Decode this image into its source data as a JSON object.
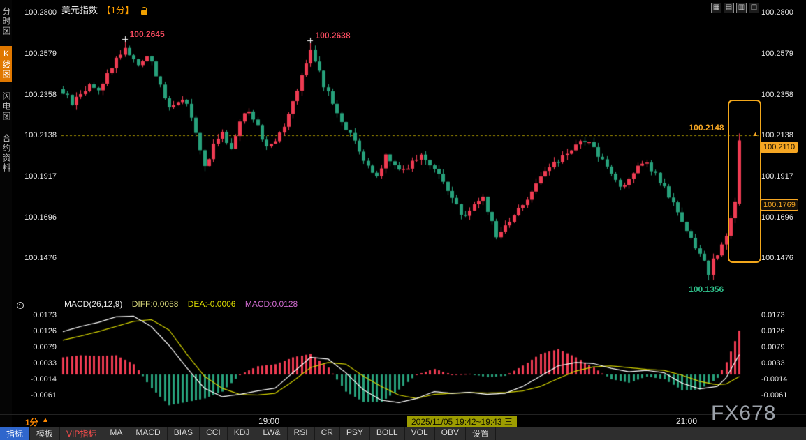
{
  "header": {
    "title": "美元指数",
    "interval_tag": "【1分】"
  },
  "icons": {
    "up_arrow": "▲",
    "window_icons": [
      {
        "name": "layout-grid-icon",
        "glyph": "▦"
      },
      {
        "name": "layout-rows-icon",
        "glyph": "▤"
      },
      {
        "name": "layout-columns-icon",
        "glyph": "▥"
      },
      {
        "name": "layout-split-icon",
        "glyph": "◫"
      }
    ]
  },
  "sidebar": {
    "items": [
      {
        "label": "分时图",
        "active": false
      },
      {
        "label": "K线图",
        "active": true
      },
      {
        "label": "闪电图",
        "active": false
      },
      {
        "label": "合约资料",
        "active": false
      }
    ]
  },
  "annotations": {
    "peak1": "100.2645",
    "peak2": "100.2638",
    "low": "100.1356",
    "session_high": "100.2148"
  },
  "price_tags": {
    "last": "100.2110",
    "secondary": "100.1769"
  },
  "macd_header": {
    "title": "MACD(26,12,9)",
    "diff_text": "DIFF:0.0058",
    "dea_text": "DEA:-0.0006",
    "macd_text": "MACD:0.0128"
  },
  "time_axis": {
    "interval": "1分",
    "mark1": "19:00",
    "crosshair": "2025/11/05 19:42~19:43 三",
    "mark2": "21:00"
  },
  "toolbar": {
    "tabs": [
      {
        "label": "指标",
        "variant": "active"
      },
      {
        "label": "模板"
      },
      {
        "label": "VIP指标",
        "variant": "vip"
      },
      {
        "label": "MA"
      },
      {
        "label": "MACD"
      },
      {
        "label": "BIAS"
      },
      {
        "label": "CCI"
      },
      {
        "label": "KDJ"
      },
      {
        "label": "LW&"
      },
      {
        "label": "RSI"
      },
      {
        "label": "CR"
      },
      {
        "label": "PSY"
      },
      {
        "label": "BOLL"
      },
      {
        "label": "VOL"
      },
      {
        "label": "OBV"
      },
      {
        "label": "设置"
      }
    ]
  },
  "watermark": "FX678",
  "colors": {
    "up": "#ef3b52",
    "down": "#27a17b",
    "accent": "#f5a623",
    "dashed": "#a29100",
    "diff_line": "#ffffff",
    "dea_line": "#d6d600"
  },
  "chart_data": {
    "type": "candlestick",
    "symbol": "美元指数",
    "interval": "1分",
    "price_ticks": [
      100.28,
      100.2579,
      100.2358,
      100.2138,
      100.1917,
      100.1696,
      100.1476
    ],
    "price_tick_labels": [
      "100.2800",
      "100.2579",
      "100.2358",
      "100.2138",
      "100.1917",
      "100.1696",
      "100.1476"
    ],
    "dashed_level": 100.2138,
    "candle_count": 154,
    "close_path_waypoints": [
      [
        0,
        100.237
      ],
      [
        2,
        100.231
      ],
      [
        4,
        100.236
      ],
      [
        6,
        100.241
      ],
      [
        8,
        100.238
      ],
      [
        10,
        100.247
      ],
      [
        12,
        100.255
      ],
      [
        14,
        100.261
      ],
      [
        15,
        100.258
      ],
      [
        17,
        100.252
      ],
      [
        19,
        100.257
      ],
      [
        21,
        100.247
      ],
      [
        24,
        100.228
      ],
      [
        26,
        100.233
      ],
      [
        28,
        100.231
      ],
      [
        30,
        100.214
      ],
      [
        32,
        100.197
      ],
      [
        34,
        100.208
      ],
      [
        36,
        100.214
      ],
      [
        38,
        100.207
      ],
      [
        40,
        100.222
      ],
      [
        42,
        100.228
      ],
      [
        44,
        100.218
      ],
      [
        46,
        100.208
      ],
      [
        48,
        100.212
      ],
      [
        50,
        100.22
      ],
      [
        52,
        100.233
      ],
      [
        54,
        100.246
      ],
      [
        56,
        100.259
      ],
      [
        57,
        100.255
      ],
      [
        59,
        100.241
      ],
      [
        61,
        100.231
      ],
      [
        63,
        100.222
      ],
      [
        65,
        100.214
      ],
      [
        67,
        100.205
      ],
      [
        69,
        100.196
      ],
      [
        71,
        100.192
      ],
      [
        73,
        100.203
      ],
      [
        75,
        100.198
      ],
      [
        77,
        100.195
      ],
      [
        79,
        100.2
      ],
      [
        81,
        100.203
      ],
      [
        83,
        100.199
      ],
      [
        85,
        100.193
      ],
      [
        87,
        100.183
      ],
      [
        89,
        100.175
      ],
      [
        91,
        100.17
      ],
      [
        93,
        100.176
      ],
      [
        95,
        100.182
      ],
      [
        97,
        100.166
      ],
      [
        98,
        100.159
      ],
      [
        100,
        100.165
      ],
      [
        102,
        100.171
      ],
      [
        104,
        100.177
      ],
      [
        106,
        100.184
      ],
      [
        108,
        100.191
      ],
      [
        110,
        100.196
      ],
      [
        112,
        100.2
      ],
      [
        114,
        100.205
      ],
      [
        116,
        100.208
      ],
      [
        118,
        100.211
      ],
      [
        120,
        100.207
      ],
      [
        122,
        100.2
      ],
      [
        124,
        100.193
      ],
      [
        126,
        100.186
      ],
      [
        128,
        100.191
      ],
      [
        130,
        100.196
      ],
      [
        132,
        100.198
      ],
      [
        134,
        100.193
      ],
      [
        136,
        100.186
      ],
      [
        138,
        100.176
      ],
      [
        140,
        100.166
      ],
      [
        142,
        100.157
      ],
      [
        144,
        100.149
      ],
      [
        146,
        100.14
      ],
      [
        147,
        100.146
      ],
      [
        149,
        100.154
      ],
      [
        151,
        100.168
      ],
      [
        152,
        100.177
      ],
      [
        153,
        100.211
      ]
    ],
    "key_points": {
      "peak1": {
        "index": 14,
        "high": 100.2645
      },
      "peak2": {
        "index": 56,
        "high": 100.2638
      },
      "low": {
        "index": 146,
        "low": 100.1356
      },
      "last": {
        "index": 153,
        "open": 100.1769,
        "close": 100.211,
        "high": 100.2148
      }
    },
    "macd": {
      "params": "(26,12,9)",
      "diff": 0.0058,
      "dea": -0.0006,
      "macd": 0.0128,
      "ticks": [
        0.0173,
        0.0126,
        0.0079,
        0.0033,
        -0.0014,
        -0.0061
      ],
      "tick_labels": [
        "0.0173",
        "0.0126",
        "0.0079",
        "0.0033",
        "-0.0014",
        "-0.0061"
      ],
      "diff_waypoints": [
        [
          0,
          0.0125
        ],
        [
          4,
          0.014
        ],
        [
          8,
          0.0152
        ],
        [
          12,
          0.0168
        ],
        [
          16,
          0.017
        ],
        [
          20,
          0.014
        ],
        [
          24,
          0.0085
        ],
        [
          28,
          0.002
        ],
        [
          32,
          -0.004
        ],
        [
          36,
          -0.0065
        ],
        [
          40,
          -0.0058
        ],
        [
          44,
          -0.0048
        ],
        [
          48,
          -0.004
        ],
        [
          52,
          0.0005
        ],
        [
          56,
          0.005
        ],
        [
          60,
          0.0045
        ],
        [
          64,
          0.0005
        ],
        [
          68,
          -0.0045
        ],
        [
          72,
          -0.0075
        ],
        [
          76,
          -0.0082
        ],
        [
          80,
          -0.007
        ],
        [
          84,
          -0.005
        ],
        [
          88,
          -0.0055
        ],
        [
          92,
          -0.0052
        ],
        [
          96,
          -0.0058
        ],
        [
          100,
          -0.0055
        ],
        [
          104,
          -0.0035
        ],
        [
          108,
          -0.0005
        ],
        [
          112,
          0.0025
        ],
        [
          116,
          0.0035
        ],
        [
          120,
          0.0032
        ],
        [
          124,
          0.0018
        ],
        [
          128,
          0.0008
        ],
        [
          132,
          0.0012
        ],
        [
          136,
          0.0005
        ],
        [
          140,
          -0.0025
        ],
        [
          144,
          -0.0042
        ],
        [
          148,
          -0.0035
        ],
        [
          150,
          -0.001
        ],
        [
          153,
          0.0058
        ]
      ],
      "dea_waypoints": [
        [
          0,
          0.01
        ],
        [
          4,
          0.0112
        ],
        [
          8,
          0.0125
        ],
        [
          12,
          0.014
        ],
        [
          16,
          0.0155
        ],
        [
          20,
          0.016
        ],
        [
          24,
          0.013
        ],
        [
          28,
          0.006
        ],
        [
          32,
          -0.0005
        ],
        [
          36,
          -0.004
        ],
        [
          40,
          -0.0058
        ],
        [
          44,
          -0.006
        ],
        [
          48,
          -0.0055
        ],
        [
          52,
          -0.002
        ],
        [
          56,
          0.002
        ],
        [
          60,
          0.0035
        ],
        [
          64,
          0.003
        ],
        [
          68,
          -0.0005
        ],
        [
          72,
          -0.0035
        ],
        [
          76,
          -0.006
        ],
        [
          80,
          -0.007
        ],
        [
          84,
          -0.0058
        ],
        [
          88,
          -0.0055
        ],
        [
          92,
          -0.0053
        ],
        [
          96,
          -0.0054
        ],
        [
          100,
          -0.0053
        ],
        [
          104,
          -0.0048
        ],
        [
          108,
          -0.0035
        ],
        [
          112,
          -0.0012
        ],
        [
          116,
          0.001
        ],
        [
          120,
          0.0022
        ],
        [
          124,
          0.0025
        ],
        [
          128,
          0.002
        ],
        [
          132,
          0.0015
        ],
        [
          136,
          0.0012
        ],
        [
          140,
          -0.0002
        ],
        [
          144,
          -0.002
        ],
        [
          148,
          -0.003
        ],
        [
          150,
          -0.0028
        ],
        [
          153,
          -0.0006
        ]
      ]
    }
  }
}
